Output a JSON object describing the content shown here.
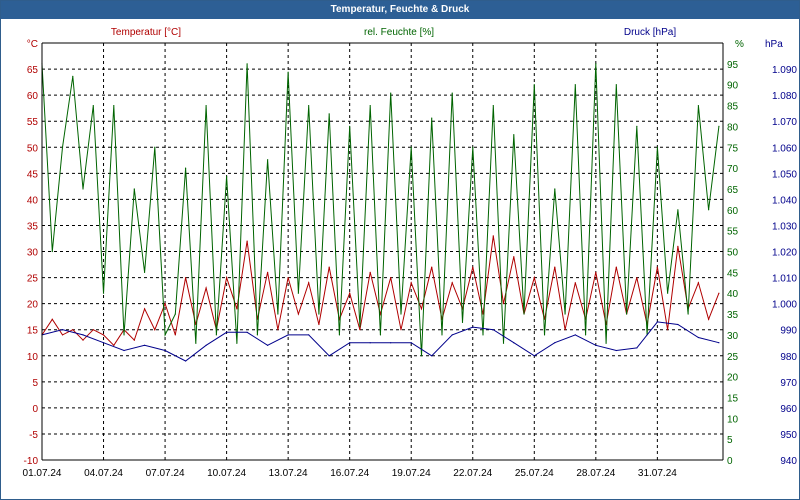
{
  "title": "Temperatur, Feuchte & Druck",
  "colors": {
    "temperature": "#b00000",
    "humidity": "#006400",
    "pressure": "#00008b",
    "title_bar": "#2d5f95",
    "grid": "#000000"
  },
  "chart_data": {
    "type": "line",
    "title": "Temperatur, Feuchte & Druck",
    "grid": true,
    "x_ticks": [
      "01.07.24",
      "04.07.24",
      "07.07.24",
      "10.07.24",
      "13.07.24",
      "16.07.24",
      "19.07.24",
      "22.07.24",
      "25.07.24",
      "28.07.24",
      "31.07.24"
    ],
    "x_range_days": [
      0,
      33.2
    ],
    "axes": {
      "temperature": {
        "label": "Temperatur [°C]",
        "unit": "°C",
        "ylim": [
          -10,
          70
        ],
        "ticks": [
          -10,
          -5,
          0,
          5,
          10,
          15,
          20,
          25,
          30,
          35,
          40,
          45,
          50,
          55,
          60,
          65
        ]
      },
      "humidity": {
        "label": "rel. Feuchte [%]",
        "unit": "%",
        "ylim": [
          0,
          100
        ],
        "ticks": [
          0,
          5,
          10,
          15,
          20,
          25,
          30,
          35,
          40,
          45,
          50,
          55,
          60,
          65,
          70,
          75,
          80,
          85,
          90,
          95
        ]
      },
      "pressure": {
        "label": "Druck [hPa]",
        "unit": "hPa",
        "ylim": [
          940,
          1100
        ],
        "ticks": [
          940,
          950,
          960,
          970,
          980,
          990,
          1000,
          1010,
          1020,
          1030,
          1040,
          1050,
          1060,
          1070,
          1080,
          1090
        ]
      }
    },
    "series": [
      {
        "name": "Temperatur [°C]",
        "axis": "temperature",
        "color": "#b00000",
        "x": [
          0,
          0.5,
          1,
          1.5,
          2,
          2.5,
          3,
          3.5,
          4,
          4.5,
          5,
          5.5,
          6,
          6.5,
          7,
          7.5,
          8,
          8.5,
          9,
          9.5,
          10,
          10.5,
          11,
          11.5,
          12,
          12.5,
          13,
          13.5,
          14,
          14.5,
          15,
          15.5,
          16,
          16.5,
          17,
          17.5,
          18,
          18.5,
          19,
          19.5,
          20,
          20.5,
          21,
          21.5,
          22,
          22.5,
          23,
          23.5,
          24,
          24.5,
          25,
          25.5,
          26,
          26.5,
          27,
          27.5,
          28,
          28.5,
          29,
          29.5,
          30,
          30.5,
          31,
          31.5,
          32,
          32.5,
          33
        ],
        "y": [
          14,
          17,
          14,
          15,
          13,
          15,
          14,
          12,
          15,
          13,
          19,
          15,
          20,
          14,
          25,
          16,
          23,
          15,
          25,
          19,
          32,
          17,
          26,
          15,
          25,
          18,
          24,
          16,
          27,
          17,
          22,
          15,
          26,
          18,
          25,
          15,
          24,
          19,
          27,
          17,
          24,
          19,
          27,
          18,
          33,
          20,
          29,
          18,
          25,
          17,
          27,
          15,
          24,
          17,
          26,
          16,
          27,
          18,
          25,
          16,
          27,
          15,
          31,
          19,
          24,
          17,
          22
        ]
      },
      {
        "name": "rel. Feuchte [%]",
        "axis": "humidity",
        "color": "#006400",
        "x": [
          0,
          0.5,
          1,
          1.5,
          2,
          2.5,
          3,
          3.5,
          4,
          4.5,
          5,
          5.5,
          6,
          6.5,
          7,
          7.5,
          8,
          8.5,
          9,
          9.5,
          10,
          10.5,
          11,
          11.5,
          12,
          12.5,
          13,
          13.5,
          14,
          14.5,
          15,
          15.5,
          16,
          16.5,
          17,
          17.5,
          18,
          18.5,
          19,
          19.5,
          20,
          20.5,
          21,
          21.5,
          22,
          22.5,
          23,
          23.5,
          24,
          24.5,
          25,
          25.5,
          26,
          26.5,
          27,
          27.5,
          28,
          28.5,
          29,
          29.5,
          30,
          30.5,
          31,
          31.5,
          32,
          32.5,
          33
        ],
        "y": [
          95,
          50,
          75,
          92,
          65,
          85,
          40,
          85,
          30,
          65,
          45,
          75,
          30,
          35,
          70,
          28,
          85,
          30,
          68,
          28,
          95,
          30,
          72,
          35,
          93,
          40,
          85,
          35,
          83,
          30,
          80,
          32,
          85,
          30,
          88,
          35,
          75,
          25,
          82,
          30,
          88,
          33,
          75,
          30,
          85,
          28,
          78,
          35,
          90,
          30,
          65,
          35,
          90,
          30,
          95,
          28,
          90,
          35,
          80,
          30,
          75,
          40,
          60,
          35,
          85,
          60,
          80
        ]
      },
      {
        "name": "Druck [hPa]",
        "axis": "pressure",
        "color": "#00008b",
        "x": [
          0,
          1,
          2,
          3,
          4,
          5,
          6,
          7,
          8,
          9,
          10,
          11,
          12,
          13,
          14,
          15,
          16,
          17,
          18,
          19,
          20,
          21,
          22,
          23,
          24,
          25,
          26,
          27,
          28,
          29,
          30,
          31,
          32,
          33
        ],
        "y": [
          988,
          990,
          988,
          985,
          982,
          984,
          982,
          978,
          984,
          989,
          989,
          984,
          988,
          988,
          980,
          985,
          985,
          985,
          985,
          980,
          988,
          991,
          990,
          985,
          980,
          985,
          988,
          984,
          982,
          983,
          993,
          992,
          987,
          985
        ]
      }
    ]
  }
}
